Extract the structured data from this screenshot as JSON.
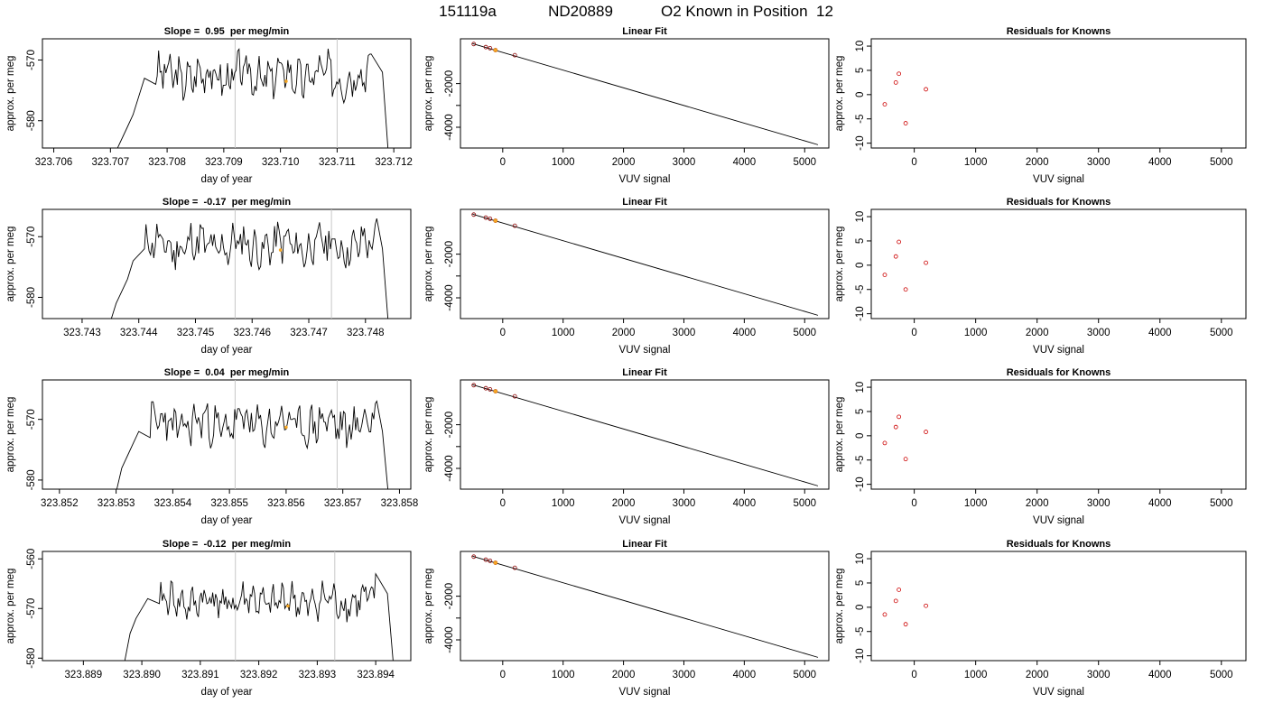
{
  "header": {
    "sample_id": "151119a",
    "tank_id": "ND20889",
    "description": "O2 Known in Position  12"
  },
  "labels": {
    "time_xlabel": "day of year",
    "time_ylabel": "approx. per meg",
    "fit_title": "Linear Fit",
    "fit_xlabel": "VUV signal",
    "fit_ylabel": "approx. per meg",
    "resid_title": "Residuals for Knowns",
    "resid_xlabel": "VUV signal",
    "resid_ylabel": "approx. per meg",
    "slope_prefix": "Slope = ",
    "slope_suffix": " per meg/min"
  },
  "colors": {
    "trace": "#000000",
    "marker_orange": "#f5a623",
    "residual_points": "#cc0000",
    "window_lines": "#c8c8c8"
  },
  "chart_data": [
    {
      "type": "line",
      "kind": "time-trace",
      "title_value": "0.95",
      "xlim": [
        323.7058,
        323.7123
      ],
      "ylim": [
        -584.5,
        -566.5
      ],
      "xticks": [
        "323.706",
        "323.707",
        "323.708",
        "323.709",
        "323.710",
        "323.711",
        "323.712"
      ],
      "yticks": [
        -580,
        -570
      ],
      "window_lines": [
        323.7092,
        323.711
      ],
      "orange_marker": {
        "x": 323.7101,
        "y": -573.5
      },
      "trace_x_range": [
        323.7071,
        323.7119
      ],
      "trace_base": -572.6,
      "trace_seed": 3,
      "trace_x": [
        323.7071,
        323.7073,
        323.7074,
        323.7075,
        323.7076,
        323.7078,
        323.7116,
        323.7118,
        323.7119
      ],
      "trace_y": [
        -585,
        -581,
        -579,
        -576,
        -573,
        -574,
        -569,
        -572,
        -585
      ]
    },
    {
      "type": "line",
      "kind": "linear-fit",
      "xlim": [
        -700,
        5400
      ],
      "ylim": [
        -4950,
        50
      ],
      "xticks": [
        0,
        1000,
        2000,
        3000,
        4000,
        5000
      ],
      "yticks": [
        -2000,
        -3000,
        -4000
      ],
      "ytick_labels": [
        "-2000",
        "",
        "-4000"
      ],
      "points": {
        "x": [
          -480,
          -280,
          -210,
          -120,
          200
        ],
        "y": [
          -190,
          -330,
          -380,
          -470,
          -700
        ]
      },
      "orange_point": {
        "x": -120,
        "y": -470
      },
      "line": {
        "x": [
          -500,
          5220
        ],
        "y": [
          -170,
          -4800
        ]
      }
    },
    {
      "type": "scatter",
      "kind": "residuals",
      "xlim": [
        -700,
        5400
      ],
      "ylim": [
        -11,
        11.5
      ],
      "xticks": [
        0,
        1000,
        2000,
        3000,
        4000,
        5000
      ],
      "yticks": [
        -10,
        -5,
        0,
        5,
        10
      ],
      "points": {
        "x": [
          -480,
          -300,
          -250,
          -140,
          190
        ],
        "y": [
          -2,
          2.5,
          4.3,
          -5.9,
          1.1
        ]
      }
    },
    {
      "type": "line",
      "kind": "time-trace",
      "title_value": "-0.17",
      "xlim": [
        323.7423,
        323.7488
      ],
      "ylim": [
        -583.5,
        -565.5
      ],
      "xticks": [
        "323.743",
        "323.744",
        "323.745",
        "323.746",
        "323.747",
        "323.748"
      ],
      "yticks": [
        -580,
        -570
      ],
      "window_lines": [
        323.7457,
        323.7474
      ],
      "orange_marker": {
        "x": 323.7465,
        "y": -572.2
      },
      "trace_x_range": [
        323.7435,
        323.7484
      ],
      "trace_base": -571.5,
      "trace_seed": 11,
      "trace_x": [
        323.7435,
        323.7436,
        323.7437,
        323.7438,
        323.7439,
        323.7441,
        323.7482,
        323.7483,
        323.7484
      ],
      "trace_y": [
        -584,
        -581,
        -579,
        -577,
        -574,
        -572,
        -567,
        -572,
        -584
      ]
    },
    {
      "type": "line",
      "kind": "linear-fit",
      "xlim": [
        -700,
        5400
      ],
      "ylim": [
        -4950,
        50
      ],
      "xticks": [
        0,
        1000,
        2000,
        3000,
        4000,
        5000
      ],
      "yticks": [
        -2000,
        -3000,
        -4000
      ],
      "ytick_labels": [
        "-2000",
        "",
        "-4000"
      ],
      "points": {
        "x": [
          -480,
          -280,
          -210,
          -120,
          200
        ],
        "y": [
          -190,
          -330,
          -380,
          -470,
          -700
        ]
      },
      "orange_point": {
        "x": -120,
        "y": -470
      },
      "line": {
        "x": [
          -500,
          5220
        ],
        "y": [
          -170,
          -4800
        ]
      }
    },
    {
      "type": "scatter",
      "kind": "residuals",
      "xlim": [
        -700,
        5400
      ],
      "ylim": [
        -11,
        11.5
      ],
      "xticks": [
        0,
        1000,
        2000,
        3000,
        4000,
        5000
      ],
      "yticks": [
        -10,
        -5,
        0,
        5,
        10
      ],
      "points": {
        "x": [
          -480,
          -300,
          -250,
          -140,
          190
        ],
        "y": [
          -2,
          1.8,
          4.8,
          -5,
          0.5
        ]
      }
    },
    {
      "type": "line",
      "kind": "time-trace",
      "title_value": "0.04",
      "xlim": [
        323.8517,
        323.8582
      ],
      "ylim": [
        -581.5,
        -563.5
      ],
      "xticks": [
        "323.852",
        "323.853",
        "323.854",
        "323.855",
        "323.856",
        "323.857",
        "323.858"
      ],
      "yticks": [
        -580,
        -570
      ],
      "window_lines": [
        323.8551,
        323.8569
      ],
      "orange_marker": {
        "x": 323.856,
        "y": -571.3
      },
      "trace_x_range": [
        323.853,
        323.8578
      ],
      "trace_base": -570.8,
      "trace_seed": 23,
      "trace_x": [
        323.853,
        323.8531,
        323.8532,
        323.8533,
        323.8534,
        323.8536,
        323.8576,
        323.8577,
        323.8578
      ],
      "trace_y": [
        -582,
        -578,
        -576,
        -574,
        -572,
        -573,
        -567,
        -572,
        -582
      ]
    },
    {
      "type": "line",
      "kind": "linear-fit",
      "xlim": [
        -700,
        5400
      ],
      "ylim": [
        -4950,
        50
      ],
      "xticks": [
        0,
        1000,
        2000,
        3000,
        4000,
        5000
      ],
      "yticks": [
        -2000,
        -3000,
        -4000
      ],
      "ytick_labels": [
        "-2000",
        "",
        "-4000"
      ],
      "points": {
        "x": [
          -480,
          -280,
          -210,
          -120,
          200
        ],
        "y": [
          -190,
          -330,
          -380,
          -470,
          -700
        ]
      },
      "orange_point": {
        "x": -120,
        "y": -470
      },
      "line": {
        "x": [
          -500,
          5220
        ],
        "y": [
          -170,
          -4800
        ]
      }
    },
    {
      "type": "scatter",
      "kind": "residuals",
      "xlim": [
        -700,
        5400
      ],
      "ylim": [
        -11,
        11.5
      ],
      "xticks": [
        0,
        1000,
        2000,
        3000,
        4000,
        5000
      ],
      "yticks": [
        -10,
        -5,
        0,
        5,
        10
      ],
      "points": {
        "x": [
          -480,
          -300,
          -250,
          -140,
          190
        ],
        "y": [
          -1.5,
          1.8,
          3.9,
          -4.8,
          0.8
        ]
      }
    },
    {
      "type": "line",
      "kind": "time-trace",
      "title_value": "-0.12",
      "xlim": [
        323.8883,
        323.8946
      ],
      "ylim": [
        -580.5,
        -558.5
      ],
      "xticks": [
        "323.889",
        "323.890",
        "323.891",
        "323.892",
        "323.893",
        "323.894"
      ],
      "yticks": [
        -580,
        -570,
        -560
      ],
      "window_lines": [
        323.8916,
        323.8933
      ],
      "orange_marker": {
        "x": 323.8925,
        "y": -569.5
      },
      "trace_x_range": [
        323.8897,
        323.8943
      ],
      "trace_base": -568.6,
      "trace_seed": 41,
      "trace_x": [
        323.8897,
        323.8898,
        323.8899,
        323.89,
        323.8901,
        323.8903,
        323.894,
        323.8942,
        323.8943
      ],
      "trace_y": [
        -581,
        -575,
        -572,
        -570,
        -568,
        -569,
        -563,
        -567,
        -581
      ]
    },
    {
      "type": "line",
      "kind": "linear-fit",
      "xlim": [
        -700,
        5400
      ],
      "ylim": [
        -4950,
        50
      ],
      "xticks": [
        0,
        1000,
        2000,
        3000,
        4000,
        5000
      ],
      "yticks": [
        -2000,
        -3000,
        -4000
      ],
      "ytick_labels": [
        "-2000",
        "",
        "-4000"
      ],
      "points": {
        "x": [
          -480,
          -280,
          -210,
          -120,
          200
        ],
        "y": [
          -190,
          -330,
          -380,
          -470,
          -700
        ]
      },
      "orange_point": {
        "x": -120,
        "y": -470
      },
      "line": {
        "x": [
          -500,
          5220
        ],
        "y": [
          -170,
          -4800
        ]
      }
    },
    {
      "type": "scatter",
      "kind": "residuals",
      "xlim": [
        -700,
        5400
      ],
      "ylim": [
        -11,
        11.5
      ],
      "xticks": [
        0,
        1000,
        2000,
        3000,
        4000,
        5000
      ],
      "yticks": [
        -10,
        -5,
        0,
        5,
        10
      ],
      "points": {
        "x": [
          -480,
          -300,
          -250,
          -140,
          190
        ],
        "y": [
          -1.5,
          1.3,
          3.6,
          -3.5,
          0.3
        ]
      }
    }
  ]
}
